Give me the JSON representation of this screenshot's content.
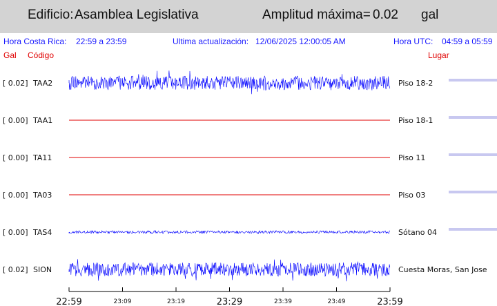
{
  "header": {
    "building_prefix": "Edificio:",
    "building_name": "Asamblea Legislativa",
    "amplitude_label": "Amplitud máxima=",
    "amplitude_value": "0.02",
    "amplitude_unit": "gal"
  },
  "info": {
    "local_label": "Hora Costa Rica:",
    "local_range": "22:59 a 23:59",
    "update_label": "Ultima actualización:",
    "update_value": "12/06/2025 12:00:05 AM",
    "utc_label": "Hora UTC:",
    "utc_range": "04:59 a 05:59"
  },
  "columns": {
    "gal": "Gal",
    "code": "Código",
    "place": "Lugar"
  },
  "colors": {
    "trace": "#0000ff",
    "flat": "#e00000",
    "header_bg": "#d3d3d3",
    "info_text": "#1a1aff",
    "marker": "#9090e0"
  },
  "chart_data": {
    "type": "line",
    "x_unit": "local time (Hora Costa Rica)",
    "x_range": [
      "22:59",
      "23:59"
    ],
    "x_ticks": [
      "22:59",
      "23:09",
      "23:19",
      "23:29",
      "23:39",
      "23:49",
      "23:59"
    ],
    "x_tick_major": [
      true,
      false,
      false,
      true,
      false,
      false,
      true
    ],
    "channels": [
      {
        "code": "TAA2",
        "gal": "[  0.02]",
        "place": "Piso 18-2",
        "peak_gal": 0.02,
        "activity": "noise"
      },
      {
        "code": "TAA1",
        "gal": "[  0.00]",
        "place": "Piso 18-1",
        "peak_gal": 0.0,
        "activity": "flat"
      },
      {
        "code": "TA11",
        "gal": "[  0.00]",
        "place": "Piso 11",
        "peak_gal": 0.0,
        "activity": "flat"
      },
      {
        "code": "TA03",
        "gal": "[  0.00]",
        "place": "Piso 03",
        "peak_gal": 0.0,
        "activity": "flat"
      },
      {
        "code": "TAS4",
        "gal": "[  0.00]",
        "place": "Sótano 04",
        "peak_gal": 0.0,
        "activity": "low-noise"
      },
      {
        "code": "SION",
        "gal": "[  0.02]",
        "place": "Cuesta Moras, San Jose",
        "peak_gal": 0.02,
        "activity": "noise"
      }
    ]
  }
}
